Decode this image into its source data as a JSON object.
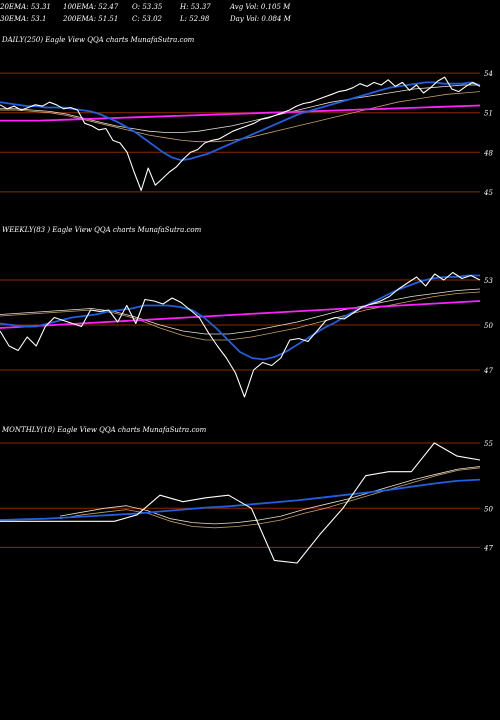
{
  "header": {
    "row1": [
      "20EMA: 53.31",
      "100EMA: 52.47",
      "O: 53.35",
      "H: 53.37",
      "Avg Vol: 0.105 M"
    ],
    "row2": [
      "30EMA: 53.1",
      "200EMA: 51.51",
      "C: 53.02",
      "L: 52.98",
      "Day Vol: 0.084 M"
    ]
  },
  "colors": {
    "background": "#000000",
    "price_line": "#ffffff",
    "ema_fast": "#1f5fe0",
    "ema_slow": "#ff22ff",
    "ema_mid_a": "#c8a060",
    "ema_mid_b": "#e8e0d0",
    "level_line": "#8b2c00"
  },
  "chart_data": [
    {
      "type": "line",
      "label": "DAILY(250) Eagle View QQA charts MunafaSutra.com",
      "ylim": [
        44,
        55
      ],
      "y_ticks": [
        54,
        51,
        48,
        45
      ],
      "series": [
        {
          "role": "price",
          "values": [
            51.6,
            51.3,
            51.5,
            51.2,
            51.4,
            51.6,
            51.5,
            51.8,
            51.6,
            51.3,
            51.4,
            51.2,
            50.2,
            50.0,
            49.7,
            49.8,
            48.9,
            48.7,
            48.0,
            46.5,
            45.1,
            46.8,
            45.5,
            46.0,
            46.5,
            46.9,
            47.5,
            48.0,
            48.2,
            48.7,
            48.9,
            49.0,
            49.3,
            49.6,
            49.8,
            50.0,
            50.2,
            50.5,
            50.6,
            50.8,
            51.0,
            51.2,
            51.5,
            51.7,
            51.8,
            52.0,
            52.2,
            52.4,
            52.6,
            52.7,
            52.9,
            53.2,
            53.0,
            53.3,
            53.1,
            53.5,
            53.0,
            53.3,
            52.7,
            53.1,
            52.5,
            52.9,
            53.4,
            53.7,
            52.8,
            52.6,
            53.0,
            53.3,
            53.0
          ]
        },
        {
          "role": "ema_fast",
          "values": [
            51.8,
            51.7,
            51.6,
            51.5,
            51.5,
            51.4,
            51.4,
            51.4,
            51.3,
            51.2,
            51.1,
            50.9,
            50.6,
            50.3,
            49.9,
            49.5,
            49.0,
            48.5,
            48.0,
            47.6,
            47.4,
            47.5,
            47.7,
            47.9,
            48.2,
            48.5,
            48.8,
            49.1,
            49.4,
            49.7,
            50.0,
            50.3,
            50.6,
            50.9,
            51.1,
            51.3,
            51.5,
            51.7,
            51.9,
            52.1,
            52.3,
            52.5,
            52.7,
            52.9,
            53.0,
            53.1,
            53.2,
            53.3,
            53.3,
            53.2,
            53.2,
            53.2,
            53.3,
            53.1
          ]
        },
        {
          "role": "ema_slow",
          "values": [
            50.4,
            50.4,
            50.4,
            50.45,
            50.5,
            50.55,
            50.6,
            50.65,
            50.7,
            50.75,
            50.8,
            50.85,
            50.9,
            50.95,
            51.0,
            51.05,
            51.1,
            51.15,
            51.2,
            51.25,
            51.3,
            51.35,
            51.4,
            51.45,
            51.5,
            51.55
          ]
        },
        {
          "role": "ema_mid_a",
          "values": [
            51.2,
            51.2,
            51.1,
            51.0,
            50.8,
            50.5,
            50.2,
            49.9,
            49.6,
            49.3,
            49.1,
            48.9,
            48.8,
            48.8,
            48.9,
            49.1,
            49.4,
            49.7,
            50.0,
            50.3,
            50.6,
            50.9,
            51.2,
            51.5,
            51.8,
            52.0,
            52.2,
            52.4,
            52.5,
            52.6
          ]
        },
        {
          "role": "ema_mid_b",
          "values": [
            51.3,
            51.3,
            51.2,
            51.1,
            50.9,
            50.6,
            50.3,
            50.0,
            49.8,
            49.6,
            49.5,
            49.5,
            49.6,
            49.8,
            50.0,
            50.3,
            50.6,
            50.9,
            51.2,
            51.5,
            51.8,
            52.0,
            52.2,
            52.4,
            52.6,
            52.8,
            52.9,
            53.0,
            53.1,
            53.1
          ]
        }
      ]
    },
    {
      "type": "line",
      "label": "WEEKLY(83 ) Eagle View QQA charts MunafaSutra.com",
      "ylim": [
        44,
        55
      ],
      "y_ticks": [
        53,
        50,
        47
      ],
      "series": [
        {
          "role": "price",
          "values": [
            49.6,
            48.6,
            48.3,
            49.2,
            48.6,
            49.9,
            50.5,
            50.3,
            50.1,
            49.9,
            51.0,
            50.9,
            51.0,
            50.2,
            51.3,
            50.1,
            51.7,
            51.6,
            51.4,
            51.8,
            51.5,
            51.0,
            50.5,
            49.5,
            48.6,
            47.8,
            46.8,
            45.2,
            47.0,
            47.5,
            47.3,
            47.8,
            49.0,
            49.1,
            48.9,
            49.6,
            50.3,
            50.5,
            50.4,
            50.8,
            51.2,
            51.4,
            51.6,
            51.9,
            52.4,
            52.8,
            53.2,
            52.6,
            53.4,
            53.0,
            53.5,
            53.1,
            53.3,
            53.0
          ]
        },
        {
          "role": "ema_fast",
          "values": [
            50.1,
            50.0,
            49.9,
            49.9,
            50.1,
            50.3,
            50.5,
            50.6,
            50.7,
            50.9,
            51.0,
            51.1,
            51.3,
            51.3,
            51.3,
            51.2,
            51.0,
            50.5,
            49.8,
            49.0,
            48.2,
            47.8,
            47.7,
            47.9,
            48.3,
            48.8,
            49.3,
            49.8,
            50.2,
            50.7,
            51.1,
            51.5,
            51.9,
            52.3,
            52.6,
            52.9,
            53.1,
            53.2,
            53.2,
            53.3,
            53.3
          ]
        },
        {
          "role": "ema_slow",
          "values": [
            49.8,
            49.9,
            50.0,
            50.1,
            50.2,
            50.3,
            50.4,
            50.5,
            50.6,
            50.7,
            50.8,
            50.9,
            51.0,
            51.1,
            51.2,
            51.3,
            51.4,
            51.5,
            51.6
          ]
        },
        {
          "role": "ema_mid_a",
          "values": [
            50.6,
            50.7,
            50.8,
            50.9,
            51.0,
            50.8,
            50.4,
            49.8,
            49.3,
            49.0,
            49.0,
            49.2,
            49.5,
            49.8,
            50.2,
            50.6,
            51.0,
            51.3,
            51.6,
            51.9,
            52.1,
            52.2
          ]
        },
        {
          "role": "ema_mid_b",
          "values": [
            50.7,
            50.8,
            50.9,
            51.0,
            51.1,
            50.9,
            50.5,
            50.0,
            49.6,
            49.4,
            49.4,
            49.6,
            49.9,
            50.2,
            50.6,
            51.0,
            51.3,
            51.6,
            51.9,
            52.1,
            52.3,
            52.4
          ]
        }
      ]
    },
    {
      "type": "line",
      "label": "MONTHLY(18) Eagle View QQA charts MunafaSutra.com",
      "ylim": [
        44.5,
        56
      ],
      "y_ticks": [
        55,
        50,
        47
      ],
      "series": [
        {
          "role": "price",
          "values": [
            49.0,
            49.0,
            49.0,
            49.0,
            49.0,
            49.0,
            49.5,
            51.0,
            50.5,
            50.8,
            51.0,
            50.0,
            46.0,
            45.8,
            48.0,
            50.0,
            52.5,
            52.8,
            52.8,
            55.0,
            54.0,
            53.7
          ]
        },
        {
          "role": "ema_fast",
          "values": [
            49.1,
            49.15,
            49.2,
            49.3,
            49.4,
            49.5,
            49.6,
            49.75,
            49.9,
            50.05,
            50.15,
            50.3,
            50.45,
            50.6,
            50.8,
            51.0,
            51.2,
            51.4,
            51.65,
            51.9,
            52.1,
            52.2
          ]
        },
        {
          "role": "ema_mid_a",
          "values": [
            49.2,
            49.5,
            49.7,
            49.9,
            49.6,
            49.0,
            48.6,
            48.5,
            48.6,
            48.8,
            49.1,
            49.6,
            50.0,
            50.5,
            51.0,
            51.5,
            52.0,
            52.5,
            52.9,
            53.1
          ]
        },
        {
          "role": "ema_mid_b",
          "values": [
            49.4,
            49.7,
            50.0,
            50.2,
            49.8,
            49.2,
            48.9,
            48.8,
            48.9,
            49.1,
            49.4,
            49.9,
            50.3,
            50.7,
            51.2,
            51.7,
            52.2,
            52.6,
            53.0,
            53.2
          ]
        }
      ]
    }
  ]
}
